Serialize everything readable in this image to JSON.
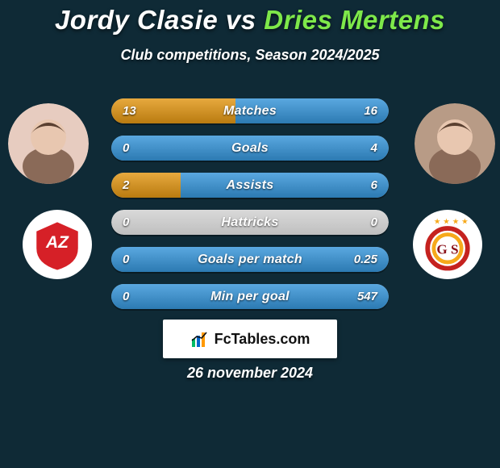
{
  "background_color": "#0f2a36",
  "title": {
    "p1": "Jordy Clasie",
    "vs": "vs",
    "p2": "Dries Mertens",
    "p1_color": "#ffffff",
    "p2_color": "#7ee84a",
    "fontsize": 33
  },
  "subtitle": {
    "text": "Club competitions, Season 2024/2025",
    "fontsize": 18,
    "color": "#ffffff"
  },
  "left_player": {
    "name": "Jordy Clasie",
    "avatar_bg": "#e7ccc0",
    "avatar_glyph": "👤",
    "club_name": "AZ",
    "club_bg": "#ffffff",
    "club_logo_text": "AZ",
    "club_logo_fill": "#d62027",
    "club_logo_text_color": "#ffffff"
  },
  "right_player": {
    "name": "Dries Mertens",
    "avatar_bg": "#b89b86",
    "avatar_glyph": "👤",
    "club_name": "Galatasaray",
    "club_bg": "#ffffff",
    "club_logo_text": "G S",
    "club_logo_fill_a": "#c5221f",
    "club_logo_fill_b": "#f6a91b",
    "club_logo_text_color": "#8a1019",
    "club_stars": 4
  },
  "bar_style": {
    "track_width": 344,
    "track_height": 31,
    "gap": 15,
    "radius": 16,
    "fontsize_label": 16,
    "fontsize_val": 15,
    "track_bg_top": "#d9d9d9",
    "track_bg_bot": "#bfbfbf",
    "left_fill": "#e7a93e",
    "right_fill": "#5aa8e0"
  },
  "bars": [
    {
      "label": "Matches",
      "left": "13",
      "right": "16",
      "left_pct": 44.8,
      "right_pct": 55.2
    },
    {
      "label": "Goals",
      "left": "0",
      "right": "4",
      "left_pct": 0.0,
      "right_pct": 100.0
    },
    {
      "label": "Assists",
      "left": "2",
      "right": "6",
      "left_pct": 25.0,
      "right_pct": 75.0
    },
    {
      "label": "Hattricks",
      "left": "0",
      "right": "0",
      "left_pct": 0.0,
      "right_pct": 0.0
    },
    {
      "label": "Goals per match",
      "left": "0",
      "right": "0.25",
      "left_pct": 0.0,
      "right_pct": 100.0
    },
    {
      "label": "Min per goal",
      "left": "0",
      "right": "547",
      "left_pct": 0.0,
      "right_pct": 100.0
    }
  ],
  "brand": {
    "text": "FcTables.com",
    "bg": "#ffffff",
    "text_color": "#111111",
    "fontsize": 18
  },
  "footer_date": {
    "text": "26 november 2024",
    "fontsize": 18,
    "color": "#ffffff"
  }
}
